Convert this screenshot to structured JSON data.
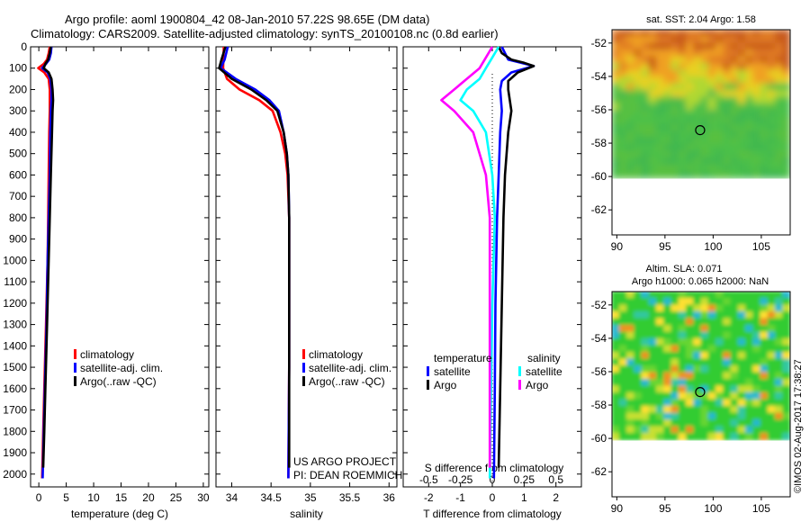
{
  "title": {
    "line1": "Argo profile: aoml 1900804_42 08-Jan-2010 57.22S 98.65E (DM data)",
    "line2": "Climatology: CARS2009. Satellite-adjusted climatology: synTS_20100108.nc (0.8d earlier)"
  },
  "credit": {
    "line1": "US ARGO PROJECT",
    "line2": "PI: DEAN ROEMMICH"
  },
  "watermark": "©IMOS 02-Aug-2017 17:38:27",
  "colors": {
    "climatology": "#ff0000",
    "satellite": "#0000ff",
    "argo": "#000000",
    "satellite_s": "#00ffff",
    "argo_s": "#ff00ff"
  },
  "chart_data": [
    {
      "id": "temperature",
      "type": "line",
      "xlabel": "temperature (deg C)",
      "xlim": [
        -1.5,
        31
      ],
      "xticks": [
        0,
        5,
        10,
        15,
        20,
        25,
        30
      ],
      "ylim": [
        0,
        2060
      ],
      "yinverted": true,
      "yticks": [
        0,
        100,
        200,
        300,
        400,
        500,
        600,
        700,
        800,
        900,
        1000,
        1100,
        1200,
        1300,
        1400,
        1500,
        1600,
        1700,
        1800,
        1900,
        2000
      ],
      "legend": [
        "climatology",
        "satellite-adj. clim.",
        "Argo(..raw -QC)"
      ],
      "series": [
        {
          "name": "climatology",
          "color": "#ff0000",
          "x": [
            2.0,
            1.8,
            1.5,
            0.9,
            -0.1,
            1.0,
            1.8,
            2.0,
            2.0,
            2.0,
            1.9,
            1.8,
            1.7,
            1.6,
            1.3,
            1.0,
            0.8,
            0.6
          ],
          "y": [
            0,
            30,
            60,
            80,
            100,
            120,
            150,
            200,
            250,
            300,
            400,
            600,
            800,
            1000,
            1300,
            1600,
            1800,
            2020
          ]
        },
        {
          "name": "satellite-adj. clim.",
          "color": "#0000ff",
          "x": [
            2.3,
            2.2,
            1.9,
            1.3,
            0.6,
            1.6,
            2.1,
            2.3,
            2.3,
            2.2,
            2.1,
            2.0,
            1.8,
            1.6,
            1.4,
            1.1,
            0.9,
            0.7
          ],
          "y": [
            0,
            30,
            60,
            80,
            100,
            120,
            150,
            200,
            250,
            300,
            400,
            600,
            800,
            1000,
            1300,
            1600,
            1800,
            2020
          ]
        },
        {
          "name": "Argo(..raw -QC)",
          "color": "#000000",
          "x": [
            2.2,
            2.0,
            1.7,
            1.2,
            0.9,
            1.8,
            2.3,
            2.5,
            2.6,
            2.5,
            2.4,
            2.2,
            2.0,
            1.8,
            1.5,
            1.2,
            1.0,
            0.8
          ],
          "y": [
            0,
            30,
            60,
            80,
            100,
            120,
            150,
            200,
            250,
            300,
            400,
            600,
            800,
            1000,
            1300,
            1600,
            1800,
            1970
          ]
        }
      ]
    },
    {
      "id": "salinity",
      "type": "line",
      "xlabel": "salinity",
      "xlim": [
        33.8,
        36.1
      ],
      "xticks": [
        34,
        34.5,
        35,
        35.5,
        36
      ],
      "ylim": [
        0,
        2060
      ],
      "yinverted": true,
      "legend": [
        "climatology",
        "satellite-adj. clim.",
        "Argo(..raw -QC)"
      ],
      "series": [
        {
          "name": "climatology",
          "color": "#ff0000",
          "x": [
            33.9,
            33.89,
            33.94,
            34.1,
            34.35,
            34.52,
            34.62,
            34.68,
            34.71,
            34.73,
            34.73,
            34.73,
            34.72
          ],
          "y": [
            0,
            100,
            150,
            200,
            250,
            300,
            400,
            500,
            600,
            800,
            1000,
            1500,
            2020
          ]
        },
        {
          "name": "satellite-adj. clim.",
          "color": "#0000ff",
          "x": [
            33.95,
            33.91,
            33.86,
            34.05,
            34.3,
            34.48,
            34.6,
            34.66,
            34.7,
            34.72,
            34.73,
            34.73,
            34.72
          ],
          "y": [
            0,
            60,
            100,
            150,
            200,
            250,
            300,
            400,
            500,
            600,
            800,
            1500,
            2020
          ]
        },
        {
          "name": "Argo(..raw -QC)",
          "color": "#000000",
          "x": [
            33.92,
            33.87,
            33.84,
            34.0,
            34.25,
            34.44,
            34.58,
            34.66,
            34.7,
            34.72,
            34.73,
            34.73
          ],
          "y": [
            0,
            60,
            100,
            150,
            200,
            250,
            300,
            400,
            500,
            600,
            800,
            1970
          ]
        }
      ]
    },
    {
      "id": "difference",
      "type": "line",
      "xlabel": "T difference from climatology",
      "xlabel2": "S difference from climatology",
      "xlim": [
        -2.8,
        2.8
      ],
      "xticks": [
        -2,
        -1,
        0,
        1,
        2
      ],
      "x2ticks": [
        -0.5,
        -0.25,
        0,
        0.25,
        0.5
      ],
      "ylim": [
        0,
        2060
      ],
      "yinverted": true,
      "legend_groups": [
        {
          "title": "temperature",
          "items": [
            {
              "label": "satellite",
              "color": "#0000ff"
            },
            {
              "label": "Argo",
              "color": "#000000"
            }
          ]
        },
        {
          "title": "salinity",
          "items": [
            {
              "label": "satellite",
              "color": "#00ffff"
            },
            {
              "label": "Argo",
              "color": "#ff00ff"
            }
          ]
        }
      ],
      "series": [
        {
          "name": "temperature satellite",
          "color": "#0000ff",
          "x": [
            0.3,
            0.4,
            0.5,
            0.9,
            1.3,
            0.6,
            0.3,
            0.25,
            0.3,
            0.25,
            0.2,
            0.15,
            0.1,
            0.08,
            0.05
          ],
          "y": [
            0,
            30,
            60,
            75,
            90,
            120,
            160,
            200,
            300,
            400,
            600,
            800,
            1200,
            1600,
            2020
          ]
        },
        {
          "name": "temperature Argo",
          "color": "#000000",
          "x": [
            0.2,
            0.3,
            0.6,
            1.0,
            1.3,
            0.8,
            0.5,
            0.5,
            0.6,
            0.5,
            0.4,
            0.35,
            0.3,
            0.25,
            0.2
          ],
          "y": [
            0,
            30,
            60,
            75,
            90,
            120,
            160,
            200,
            300,
            400,
            600,
            800,
            1200,
            1600,
            1970
          ]
        },
        {
          "name": "salinity satellite",
          "color": "#00ffff",
          "x": [
            0.05,
            0.0,
            -0.05,
            -0.1,
            -0.2,
            -0.25,
            -0.15,
            -0.05,
            0.0,
            0.02,
            0.0,
            -0.02
          ],
          "y": [
            0,
            50,
            100,
            150,
            200,
            250,
            300,
            400,
            600,
            800,
            1200,
            2020
          ]
        },
        {
          "name": "salinity Argo",
          "color": "#ff00ff",
          "x": [
            0.0,
            -0.05,
            -0.1,
            -0.2,
            -0.3,
            -0.4,
            -0.3,
            -0.15,
            -0.05,
            -0.02,
            -0.02,
            -0.02
          ],
          "y": [
            0,
            50,
            100,
            150,
            200,
            250,
            300,
            400,
            600,
            800,
            1200,
            1970
          ]
        }
      ]
    },
    {
      "id": "sst_map",
      "type": "heatmap",
      "title": "sat. SST: 2.04 Argo: 1.58",
      "xlim": [
        89.5,
        108
      ],
      "ylim": [
        -63.5,
        -51.2
      ],
      "xticks": [
        90,
        95,
        100,
        105
      ],
      "yticks": [
        -52,
        -54,
        -56,
        -58,
        -60,
        -62
      ],
      "data_extent": {
        "x": [
          89.5,
          108
        ],
        "y": [
          -60.1,
          -51.2
        ]
      },
      "marker": {
        "lon": 98.65,
        "lat": -57.22
      }
    },
    {
      "id": "sla_map",
      "type": "heatmap",
      "title": "Altim. SLA: 0.071",
      "subtitle": "Argo h1000: 0.065 h2000: NaN",
      "xlim": [
        89.5,
        108
      ],
      "ylim": [
        -63.5,
        -51.2
      ],
      "xticks": [
        90,
        95,
        100,
        105
      ],
      "yticks": [
        -52,
        -54,
        -56,
        -58,
        -60,
        -62
      ],
      "data_extent": {
        "x": [
          89.5,
          108
        ],
        "y": [
          -60.1,
          -51.2
        ]
      },
      "marker": {
        "lon": 98.65,
        "lat": -57.22
      }
    }
  ]
}
